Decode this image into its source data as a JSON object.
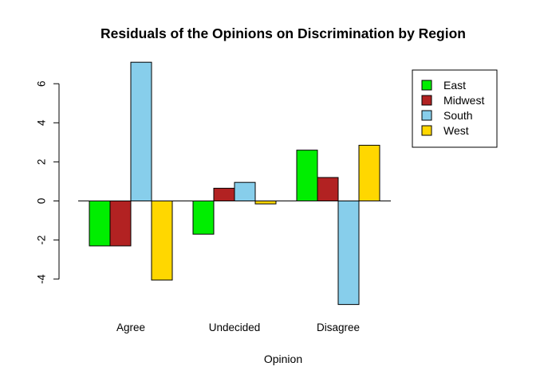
{
  "chart_data": {
    "type": "bar",
    "title": "Residuals of the Opinions on Discrimination by Region",
    "xlabel": "Opinion",
    "ylabel": "",
    "categories": [
      "Agree",
      "Undecided",
      "Disagree"
    ],
    "series": [
      {
        "name": "East",
        "color": "#00ee00",
        "values": [
          -2.3,
          -1.7,
          2.6
        ]
      },
      {
        "name": "Midwest",
        "color": "#b22222",
        "values": [
          -2.3,
          0.65,
          1.2
        ]
      },
      {
        "name": "South",
        "color": "#87ceeb",
        "values": [
          7.1,
          0.95,
          -5.3
        ]
      },
      {
        "name": "West",
        "color": "#ffd700",
        "values": [
          -4.05,
          -0.15,
          2.85
        ]
      }
    ],
    "yticks": [
      -4,
      -2,
      0,
      2,
      4,
      6
    ],
    "ytick_labels": [
      "-4",
      "-2",
      "0",
      "2",
      "4",
      "6"
    ],
    "ylim": [
      -5.3,
      7.1
    ],
    "grid": false,
    "legend_position": "top-right",
    "baseline_value": 0
  }
}
